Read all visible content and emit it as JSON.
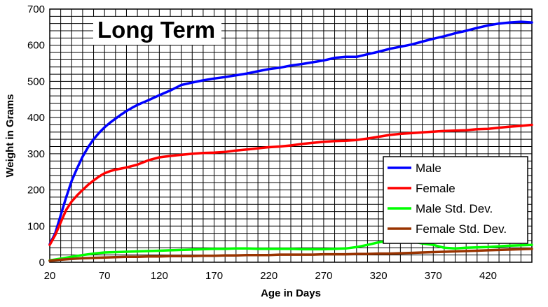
{
  "chart_data": {
    "type": "line",
    "title": "Long Term",
    "xlabel": "Age in Days",
    "ylabel": "Weight in Grams",
    "xlim": [
      20,
      460
    ],
    "ylim": [
      0,
      700
    ],
    "x_ticks": [
      20,
      70,
      120,
      170,
      220,
      270,
      320,
      370,
      420
    ],
    "y_ticks": [
      0,
      100,
      200,
      300,
      400,
      500,
      600,
      700
    ],
    "grid": true,
    "legend_position": "bottom-right",
    "series": [
      {
        "name": "Male",
        "color": "#0000ff",
        "points": [
          [
            20,
            50
          ],
          [
            25,
            80
          ],
          [
            30,
            130
          ],
          [
            35,
            180
          ],
          [
            40,
            225
          ],
          [
            45,
            260
          ],
          [
            50,
            292
          ],
          [
            55,
            318
          ],
          [
            60,
            340
          ],
          [
            65,
            358
          ],
          [
            70,
            373
          ],
          [
            75,
            386
          ],
          [
            80,
            397
          ],
          [
            85,
            408
          ],
          [
            90,
            418
          ],
          [
            95,
            427
          ],
          [
            100,
            435
          ],
          [
            110,
            448
          ],
          [
            120,
            462
          ],
          [
            130,
            475
          ],
          [
            140,
            490
          ],
          [
            150,
            497
          ],
          [
            160,
            503
          ],
          [
            170,
            508
          ],
          [
            180,
            512
          ],
          [
            190,
            517
          ],
          [
            200,
            522
          ],
          [
            210,
            528
          ],
          [
            220,
            534
          ],
          [
            230,
            538
          ],
          [
            240,
            544
          ],
          [
            250,
            548
          ],
          [
            260,
            553
          ],
          [
            270,
            558
          ],
          [
            280,
            565
          ],
          [
            290,
            568
          ],
          [
            300,
            568
          ],
          [
            310,
            575
          ],
          [
            320,
            582
          ],
          [
            330,
            590
          ],
          [
            340,
            596
          ],
          [
            350,
            602
          ],
          [
            360,
            610
          ],
          [
            370,
            618
          ],
          [
            380,
            625
          ],
          [
            390,
            633
          ],
          [
            400,
            640
          ],
          [
            410,
            648
          ],
          [
            420,
            655
          ],
          [
            430,
            660
          ],
          [
            440,
            663
          ],
          [
            450,
            665
          ],
          [
            460,
            663
          ]
        ]
      },
      {
        "name": "Female",
        "color": "#ff0000",
        "points": [
          [
            20,
            48
          ],
          [
            25,
            75
          ],
          [
            30,
            110
          ],
          [
            35,
            145
          ],
          [
            40,
            168
          ],
          [
            45,
            185
          ],
          [
            50,
            200
          ],
          [
            55,
            214
          ],
          [
            60,
            226
          ],
          [
            65,
            237
          ],
          [
            70,
            246
          ],
          [
            75,
            252
          ],
          [
            80,
            256
          ],
          [
            90,
            262
          ],
          [
            100,
            270
          ],
          [
            110,
            282
          ],
          [
            120,
            290
          ],
          [
            130,
            294
          ],
          [
            140,
            297
          ],
          [
            150,
            300
          ],
          [
            160,
            302
          ],
          [
            170,
            303
          ],
          [
            180,
            305
          ],
          [
            190,
            309
          ],
          [
            200,
            312
          ],
          [
            210,
            315
          ],
          [
            220,
            318
          ],
          [
            230,
            320
          ],
          [
            240,
            323
          ],
          [
            250,
            327
          ],
          [
            260,
            330
          ],
          [
            270,
            333
          ],
          [
            280,
            335
          ],
          [
            290,
            336
          ],
          [
            300,
            338
          ],
          [
            310,
            342
          ],
          [
            320,
            347
          ],
          [
            330,
            352
          ],
          [
            340,
            355
          ],
          [
            350,
            357
          ],
          [
            360,
            359
          ],
          [
            370,
            361
          ],
          [
            380,
            363
          ],
          [
            390,
            364
          ],
          [
            400,
            365
          ],
          [
            410,
            368
          ],
          [
            420,
            369
          ],
          [
            430,
            372
          ],
          [
            440,
            375
          ],
          [
            450,
            377
          ],
          [
            460,
            380
          ]
        ]
      },
      {
        "name": "Male Std. Dev.",
        "color": "#00ff00",
        "points": [
          [
            20,
            5
          ],
          [
            30,
            10
          ],
          [
            40,
            15
          ],
          [
            50,
            20
          ],
          [
            60,
            24
          ],
          [
            70,
            27
          ],
          [
            80,
            28
          ],
          [
            90,
            29
          ],
          [
            100,
            30
          ],
          [
            110,
            31
          ],
          [
            120,
            32
          ],
          [
            130,
            33
          ],
          [
            140,
            34
          ],
          [
            150,
            35
          ],
          [
            160,
            36
          ],
          [
            170,
            37
          ],
          [
            180,
            37
          ],
          [
            190,
            38
          ],
          [
            200,
            38
          ],
          [
            210,
            37
          ],
          [
            220,
            37
          ],
          [
            230,
            37
          ],
          [
            240,
            37
          ],
          [
            250,
            36
          ],
          [
            260,
            36
          ],
          [
            270,
            36
          ],
          [
            280,
            37
          ],
          [
            290,
            38
          ],
          [
            300,
            42
          ],
          [
            310,
            48
          ],
          [
            320,
            55
          ],
          [
            330,
            60
          ],
          [
            340,
            62
          ],
          [
            350,
            58
          ],
          [
            360,
            52
          ],
          [
            370,
            48
          ],
          [
            380,
            40
          ],
          [
            390,
            38
          ],
          [
            400,
            40
          ],
          [
            410,
            41
          ],
          [
            420,
            42
          ],
          [
            430,
            44
          ],
          [
            440,
            46
          ],
          [
            450,
            47
          ],
          [
            460,
            48
          ]
        ]
      },
      {
        "name": "Female Std. Dev.",
        "color": "#993300",
        "points": [
          [
            20,
            4
          ],
          [
            30,
            7
          ],
          [
            40,
            9
          ],
          [
            50,
            11
          ],
          [
            60,
            12
          ],
          [
            70,
            13
          ],
          [
            80,
            14
          ],
          [
            90,
            15
          ],
          [
            100,
            15
          ],
          [
            110,
            16
          ],
          [
            120,
            16
          ],
          [
            130,
            17
          ],
          [
            140,
            17
          ],
          [
            150,
            17
          ],
          [
            160,
            18
          ],
          [
            170,
            18
          ],
          [
            180,
            19
          ],
          [
            190,
            19
          ],
          [
            200,
            20
          ],
          [
            210,
            20
          ],
          [
            220,
            20
          ],
          [
            230,
            21
          ],
          [
            240,
            21
          ],
          [
            250,
            21
          ],
          [
            260,
            21
          ],
          [
            270,
            22
          ],
          [
            280,
            22
          ],
          [
            290,
            22
          ],
          [
            300,
            23
          ],
          [
            310,
            23
          ],
          [
            320,
            24
          ],
          [
            330,
            24
          ],
          [
            340,
            25
          ],
          [
            350,
            26
          ],
          [
            360,
            27
          ],
          [
            370,
            28
          ],
          [
            380,
            29
          ],
          [
            390,
            30
          ],
          [
            400,
            31
          ],
          [
            410,
            32
          ],
          [
            420,
            33
          ],
          [
            430,
            34
          ],
          [
            440,
            35
          ],
          [
            450,
            36
          ],
          [
            460,
            37
          ]
        ]
      }
    ]
  }
}
